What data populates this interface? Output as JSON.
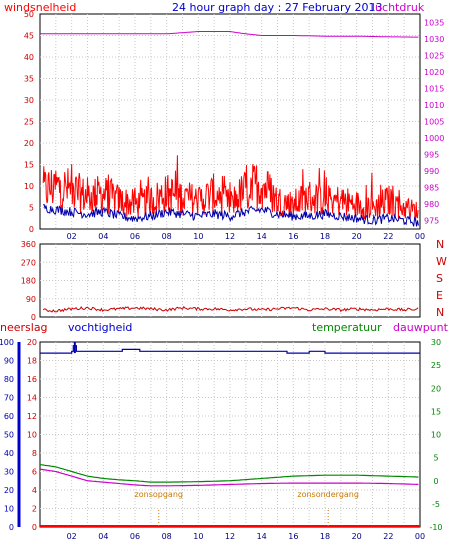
{
  "chart_data": [
    {
      "type": "line",
      "title": "24 hour graph day : 27 February 2013",
      "left_label": "windsnelheid",
      "right_label": "luchtdruk",
      "left_ticks": [
        "0",
        "5",
        "10",
        "15",
        "20",
        "25",
        "30",
        "35",
        "40",
        "45",
        "50"
      ],
      "right_ticks": [
        "975",
        "980",
        "985",
        "990",
        "995",
        "1000",
        "1005",
        "1010",
        "1015",
        "1020",
        "1025",
        "1030",
        "1035"
      ],
      "ylim_left": [
        0,
        50
      ],
      "ylim_right": [
        972.5,
        1037.5
      ],
      "x_ticks": [
        "02",
        "04",
        "06",
        "08",
        "10",
        "12",
        "14",
        "16",
        "18",
        "20",
        "22",
        "00"
      ],
      "xlim_hours": [
        0,
        24
      ],
      "grid": true,
      "colors": {
        "windgust": "#ff0000",
        "windspeed": "#0000aa",
        "pressure": "#cc00cc",
        "axis_left": "#ff0000",
        "axis_right": "#cc00cc",
        "title": "#0000cc"
      },
      "series": [
        {
          "name": "windsnelheid",
          "role": "gust",
          "x": [
            0.2,
            1,
            2,
            3,
            4,
            5,
            6,
            7,
            8,
            9,
            10,
            11,
            12,
            13,
            14,
            15,
            16,
            17,
            18,
            19,
            20,
            21,
            22,
            23,
            23.9
          ],
          "values": [
            11,
            12,
            11,
            9,
            10,
            8,
            7,
            8,
            10,
            9,
            8,
            10,
            7,
            11,
            13,
            8,
            7,
            9,
            8,
            8,
            7,
            6,
            8,
            6,
            5
          ]
        },
        {
          "name": "windsnelheid",
          "role": "average",
          "x": [
            0.2,
            1,
            2,
            3,
            4,
            5,
            6,
            7,
            8,
            9,
            10,
            11,
            12,
            13,
            14,
            15,
            16,
            17,
            18,
            19,
            20,
            21,
            22,
            23,
            23.9
          ],
          "values": [
            5,
            4.5,
            4,
            3.5,
            4,
            3,
            2.5,
            3,
            4,
            3.5,
            3,
            3.5,
            3,
            4,
            4.5,
            3.5,
            3,
            3,
            3.5,
            3,
            2.5,
            2,
            2.5,
            2,
            1.5
          ]
        },
        {
          "name": "luchtdruk",
          "x": [
            0,
            2,
            4,
            6,
            8,
            10,
            12,
            13,
            14,
            16,
            18,
            20,
            22,
            24
          ],
          "values": [
            1031.5,
            1031.5,
            1031.5,
            1031.5,
            1031.5,
            1032.2,
            1032.2,
            1031.5,
            1031,
            1031,
            1030.8,
            1030.8,
            1030.6,
            1030.5
          ]
        }
      ]
    },
    {
      "type": "line",
      "ylabel_right": [
        "N",
        "W",
        "S",
        "E",
        "N"
      ],
      "left_ticks": [
        "0",
        "90",
        "180",
        "270",
        "360"
      ],
      "ylim": [
        0,
        360
      ],
      "x_ticks": [
        "02",
        "04",
        "06",
        "08",
        "10",
        "12",
        "14",
        "16",
        "18",
        "20",
        "22",
        "00"
      ],
      "xlim_hours": [
        0,
        24
      ],
      "grid": true,
      "colors": {
        "winddir": "#cc0000",
        "axis": "#ff0000"
      },
      "series": [
        {
          "name": "windrichting",
          "x": [
            0,
            1,
            2,
            3,
            4,
            5,
            6,
            7,
            8,
            9,
            10,
            11,
            12,
            13,
            14,
            15,
            16,
            17,
            18,
            19,
            20,
            21,
            22,
            23,
            24
          ],
          "values": [
            35,
            30,
            40,
            45,
            35,
            40,
            45,
            40,
            35,
            45,
            40,
            40,
            35,
            40,
            35,
            40,
            45,
            35,
            40,
            35,
            40,
            35,
            40,
            35,
            40
          ]
        }
      ]
    },
    {
      "type": "line",
      "labels": {
        "rain": "neerslag",
        "humidity": "vochtigheid",
        "temperature": "temperatuur",
        "dewpoint": "dauwpunt"
      },
      "left_ticks": [
        "0",
        "10",
        "20",
        "30",
        "40",
        "50",
        "60",
        "70",
        "80",
        "90",
        "100"
      ],
      "left_ticks_inner": [
        "0",
        "2",
        "4",
        "6",
        "8",
        "10",
        "12",
        "14",
        "16",
        "18",
        "20"
      ],
      "right_ticks": [
        "-10",
        "-5",
        "0",
        "5",
        "10",
        "15",
        "20",
        "25",
        "30"
      ],
      "ylim_humidity": [
        0,
        100
      ],
      "ylim_rain": [
        0,
        20
      ],
      "ylim_temperature": [
        -10,
        30
      ],
      "x_ticks": [
        "02",
        "04",
        "06",
        "08",
        "10",
        "12",
        "14",
        "16",
        "18",
        "20",
        "22",
        "00"
      ],
      "xlim_hours": [
        0,
        24
      ],
      "annotations": [
        {
          "text": "zonsopgang",
          "x_hour": 7.5
        },
        {
          "text": "zonsondergang",
          "x_hour": 18.2
        }
      ],
      "grid": true,
      "colors": {
        "humidity": "#0000aa",
        "temperature": "#008800",
        "dewpoint": "#cc00cc",
        "rain": "#ff0000",
        "label_rain": "#cc0000",
        "label_humidity": "#0000cc",
        "label_temperature": "#008800",
        "label_dewpoint": "#cc00cc",
        "annotation": "#cc7700"
      },
      "series": [
        {
          "name": "vochtigheid",
          "x": [
            0,
            1,
            2,
            2.1,
            2.3,
            3,
            4,
            5,
            5.2,
            6,
            6.3,
            7,
            8,
            10,
            12,
            13,
            14,
            15,
            15.6,
            16,
            17,
            18,
            19,
            20,
            22,
            24
          ],
          "values": [
            94,
            94,
            95,
            98,
            95,
            95,
            95,
            95,
            96,
            96,
            95,
            95,
            95,
            95,
            95,
            95,
            95,
            95,
            94,
            94,
            95,
            94,
            94,
            94,
            94,
            94
          ]
        },
        {
          "name": "temperatuur",
          "x": [
            0,
            1,
            2,
            3,
            4,
            5,
            6,
            7,
            8,
            10,
            12,
            14,
            16,
            18,
            20,
            22,
            24
          ],
          "values": [
            3.5,
            3,
            2,
            1,
            0.5,
            0.2,
            0,
            -0.3,
            -0.3,
            -0.2,
            0,
            0.5,
            1,
            1.2,
            1.2,
            1,
            0.8
          ]
        },
        {
          "name": "dauwpunt",
          "x": [
            0,
            1,
            2,
            3,
            4,
            5,
            6,
            7,
            8,
            10,
            12,
            14,
            16,
            18,
            20,
            22,
            24
          ],
          "values": [
            2.5,
            2,
            1,
            0,
            -0.3,
            -0.6,
            -0.9,
            -1.1,
            -1.1,
            -1,
            -0.8,
            -0.6,
            -0.5,
            -0.5,
            -0.5,
            -0.6,
            -0.8
          ]
        },
        {
          "name": "neerslag",
          "x": [
            0,
            24
          ],
          "values": [
            0,
            0
          ]
        }
      ]
    }
  ]
}
